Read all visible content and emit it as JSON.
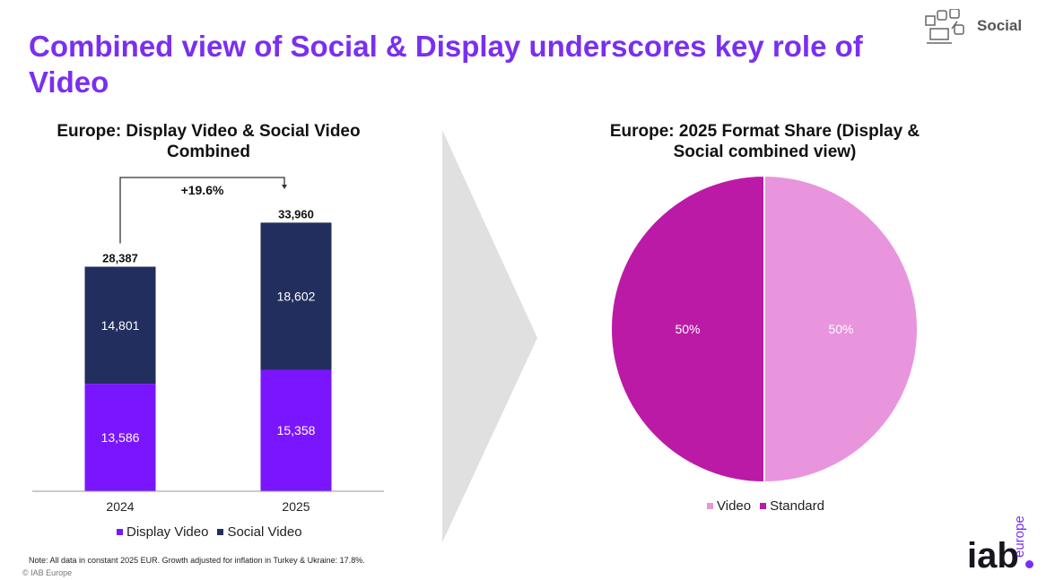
{
  "page": {
    "title": "Combined view of Social & Display underscores key role of Video",
    "section_label": "Social",
    "note": "Note: All data in constant 2025 EUR. Growth adjusted for inflation in Turkey & Ukraine: 17.8%.",
    "copyright": "© IAB Europe",
    "logo_main": "iab",
    "logo_sub": "europe",
    "section_icon": "social-media-icon"
  },
  "colors": {
    "accent": "#7a2ff0",
    "display_video": "#7a16ff",
    "social_video": "#222e5e",
    "pie_video": "#e895dd",
    "pie_standard": "#bb1aa6"
  },
  "chart_data": [
    {
      "type": "bar",
      "stacked": true,
      "title": "Europe: Display Video & Social Video Combined",
      "categories": [
        "2024",
        "2025"
      ],
      "series": [
        {
          "name": "Display Video",
          "values": [
            13586,
            15358
          ],
          "labels": [
            "13,586",
            "15,358"
          ]
        },
        {
          "name": "Social Video",
          "values": [
            14801,
            18602
          ],
          "labels": [
            "14,801",
            "18,602"
          ]
        }
      ],
      "totals": [
        28387,
        33960
      ],
      "total_labels": [
        "28,387",
        "33,960"
      ],
      "annotation": "+19.6%",
      "legend": "bottom",
      "grid": false
    },
    {
      "type": "pie",
      "title": "Europe: 2025 Format Share (Display & Social combined view)",
      "slices": [
        {
          "name": "Video",
          "value": 50,
          "label": "50%"
        },
        {
          "name": "Standard",
          "value": 50,
          "label": "50%"
        }
      ],
      "legend": "bottom"
    }
  ]
}
